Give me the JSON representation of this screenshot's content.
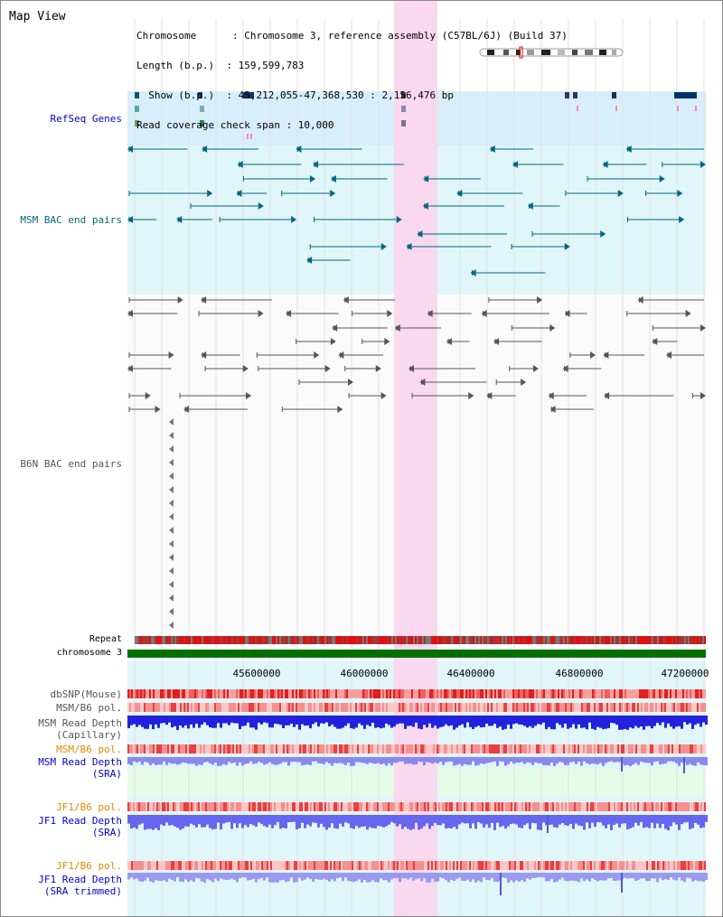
{
  "header": {
    "view_title": "Map View",
    "lines": [
      "Chromosome      : Chromosome 3, reference assembly (C57BL/6J) (Build 37)",
      "Length (b.p.)  : 159,599,783",
      "  Show (b.p.)  : 45,212,055-47,368,530 : 2,156,476 bp",
      "Read coverage check span : 10,000"
    ]
  },
  "labels": {
    "refseq": "RefSeq Genes",
    "msm_bac": "MSM BAC end pairs",
    "b6n_bac": "B6N BAC end pairs",
    "repeat": "Repeat",
    "chromosome": "chromosome 3",
    "dbsnp": "dbSNP(Mouse)",
    "msm_b6_pol": "MSM/B6 pol.",
    "msm_read_depth_cap_1": "MSM Read Depth",
    "msm_read_depth_cap_2": "(Capillary)",
    "msm_b6_pol2": "MSM/B6 pol.",
    "msm_read_depth_sra_1": "MSM Read Depth",
    "msm_read_depth_sra_2": "(SRA)",
    "jf1_b6_pol": "JF1/B6 pol.",
    "jf1_read_depth_sra_1": "JF1 Read Depth",
    "jf1_read_depth_sra_2": "(SRA)",
    "jf1_b6_pol2": "JF1/B6 pol.",
    "jf1_read_depth_trim_1": "JF1 Read Depth",
    "jf1_read_depth_trim_2": "(SRA trimmed)"
  },
  "axis": {
    "ticks": [
      "45600000",
      "46000000",
      "46400000",
      "46800000",
      "47200000"
    ]
  },
  "colors": {
    "refseq_bg": "#d8eefb",
    "msm_bg": "#e0f6f8",
    "b6n_bg": "#f6f6f6",
    "highlight": "#f9d8f0",
    "chromosome": "#007000",
    "teal": "#006680",
    "gray_feature": "#555555",
    "depth_blue": "#2222dd",
    "depth_lavender": "#8888ee"
  }
}
